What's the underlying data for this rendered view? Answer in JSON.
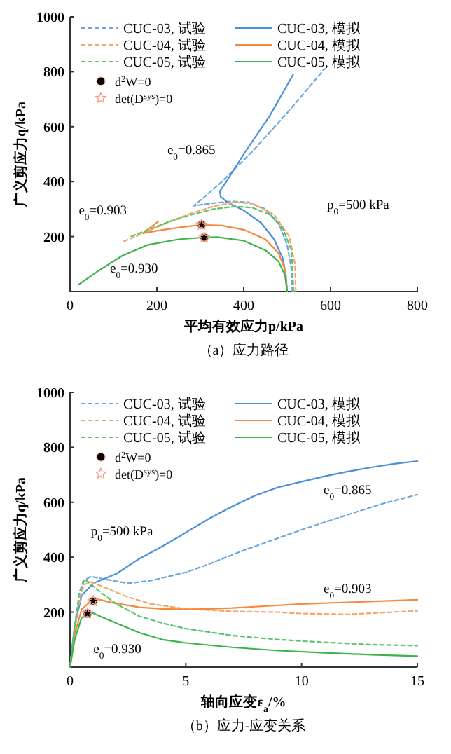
{
  "chart_data": [
    {
      "type": "line",
      "title": "（a）应力路径",
      "xlabel": "平均有效应力p/kPa",
      "ylabel": "广义剪应力q/kPa",
      "xlim": [
        0,
        800
      ],
      "xticks": [
        0,
        200,
        400,
        600,
        800
      ],
      "ylim": [
        0,
        1000
      ],
      "yticks": [
        200,
        400,
        600,
        800,
        1000
      ],
      "legend": "top left",
      "grid": false,
      "series": [
        {
          "name": "CUC-03, 试验",
          "color": "#6aa8e0",
          "line_style": "dashed",
          "x": [
            512,
            510,
            500,
            480,
            450,
            410,
            370,
            320,
            285,
            310,
            350,
            420,
            500,
            586
          ],
          "values": [
            0,
            80,
            170,
            250,
            300,
            325,
            328,
            320,
            312,
            345,
            400,
            510,
            650,
            810
          ]
        },
        {
          "name": "CUC-03, 模拟",
          "color": "#4a90d9",
          "line_style": "solid",
          "x": [
            500,
            497,
            490,
            470,
            440,
            400,
            365,
            347,
            345,
            360,
            400,
            460,
            514
          ],
          "values": [
            0,
            60,
            120,
            190,
            250,
            295,
            322,
            345,
            365,
            400,
            500,
            640,
            790
          ]
        },
        {
          "name": "CUC-04, 试验",
          "color": "#f7a66a",
          "line_style": "dashed",
          "x": [
            520,
            518,
            505,
            470,
            420,
            380,
            330,
            280,
            230,
            180,
            123
          ],
          "values": [
            0,
            100,
            200,
            280,
            320,
            325,
            310,
            285,
            255,
            220,
            182
          ]
        },
        {
          "name": "CUC-04, 模拟",
          "color": "#f58a3c",
          "line_style": "solid",
          "x": [
            500,
            495,
            480,
            450,
            400,
            350,
            303,
            260,
            215,
            168,
            203
          ],
          "values": [
            0,
            80,
            140,
            190,
            225,
            240,
            243,
            235,
            225,
            212,
            255
          ]
        },
        {
          "name": "CUC-05, 试验",
          "color": "#5cc46a",
          "line_style": "dashed",
          "x": [
            515,
            510,
            490,
            460,
            420,
            380,
            330,
            280,
            230,
            180,
            140
          ],
          "values": [
            0,
            150,
            230,
            280,
            305,
            310,
            300,
            280,
            255,
            225,
            200
          ]
        },
        {
          "name": "CUC-05, 模拟",
          "color": "#3cb44b",
          "line_style": "solid",
          "x": [
            500,
            495,
            480,
            450,
            400,
            340,
            309,
            250,
            180,
            120,
            60,
            20
          ],
          "values": [
            0,
            60,
            110,
            150,
            185,
            198,
            197,
            190,
            170,
            130,
            70,
            25
          ]
        },
        {
          "name": "d$^{2}$W=0",
          "type": "scatter",
          "marker": "circle",
          "color": "#000000",
          "x": [
            303,
            309
          ],
          "values": [
            243,
            197
          ]
        },
        {
          "name": "det(D$^{sys}$)=0",
          "type": "scatter",
          "marker": "star",
          "color": "#f0a08a",
          "x": [
            303,
            309
          ],
          "values": [
            243,
            197
          ]
        }
      ],
      "annotations": [
        "e$_{0}$=0.865",
        "e$_{0}$=0.903",
        "e$_{0}$=0.930",
        "p$_{0}$=500 kPa"
      ]
    },
    {
      "type": "line",
      "title": "（b）应力-应变关系",
      "xlabel": "轴向应变ε$_{a}$/%",
      "ylabel": "广义剪应力q/kPa",
      "xlim": [
        0,
        15
      ],
      "xticks": [
        0,
        5,
        10,
        15
      ],
      "ylim": [
        0,
        1000
      ],
      "yticks": [
        200,
        400,
        600,
        800,
        1000
      ],
      "legend": "top left",
      "grid": false,
      "series": [
        {
          "name": "CUC-03, 试验",
          "color": "#6aa8e0",
          "line_style": "dashed",
          "x": [
            0,
            0.3,
            0.6,
            0.9,
            1.5,
            2.5,
            3.5,
            5,
            6,
            7.5,
            9,
            10,
            12,
            13.5,
            15
          ],
          "values": [
            0,
            200,
            315,
            330,
            320,
            305,
            315,
            345,
            375,
            425,
            470,
            500,
            555,
            595,
            628
          ]
        },
        {
          "name": "CUC-03, 模拟",
          "color": "#4a90d9",
          "line_style": "solid",
          "x": [
            0,
            0.2,
            0.5,
            1,
            2,
            3,
            4,
            5,
            6,
            7,
            8,
            9,
            10,
            11,
            12,
            13,
            14,
            15
          ],
          "values": [
            0,
            150,
            260,
            305,
            340,
            395,
            440,
            490,
            540,
            585,
            625,
            655,
            675,
            695,
            712,
            727,
            740,
            750
          ]
        },
        {
          "name": "CUC-04, 试验",
          "color": "#f7a66a",
          "line_style": "dashed",
          "x": [
            0,
            0.3,
            0.6,
            0.9,
            1.5,
            2.5,
            3.5,
            5,
            7,
            9,
            10,
            12,
            15
          ],
          "values": [
            0,
            200,
            300,
            310,
            290,
            255,
            230,
            212,
            203,
            200,
            195,
            192,
            205
          ]
        },
        {
          "name": "CUC-04, 模拟",
          "color": "#f58a3c",
          "line_style": "solid",
          "x": [
            0,
            0.2,
            0.5,
            0.9,
            1.2,
            1.8,
            3,
            4,
            5,
            6,
            7,
            8,
            10,
            12,
            15
          ],
          "values": [
            0,
            120,
            210,
            240,
            247,
            235,
            218,
            212,
            210,
            212,
            215,
            220,
            230,
            236,
            245
          ]
        },
        {
          "name": "CUC-05, 试验",
          "color": "#5cc46a",
          "line_style": "dashed",
          "x": [
            0,
            0.2,
            0.4,
            0.6,
            0.8,
            1.2,
            2,
            3,
            4,
            5,
            7,
            9,
            11,
            13,
            15
          ],
          "values": [
            0,
            150,
            270,
            320,
            310,
            280,
            230,
            185,
            160,
            140,
            115,
            100,
            90,
            82,
            78
          ]
        },
        {
          "name": "CUC-05, 模拟",
          "color": "#3cb44b",
          "line_style": "solid",
          "x": [
            0,
            0.2,
            0.5,
            0.9,
            1.3,
            2,
            3,
            4,
            5,
            7,
            9,
            11,
            13,
            15
          ],
          "values": [
            0,
            100,
            180,
            200,
            185,
            160,
            125,
            100,
            88,
            72,
            60,
            52,
            45,
            40
          ]
        },
        {
          "name": "d$^{2}$W=0",
          "type": "scatter",
          "marker": "circle",
          "color": "#000000",
          "x": [
            1.0,
            0.75
          ],
          "values": [
            240,
            195
          ]
        },
        {
          "name": "det(D$^{sys}$)=0",
          "type": "scatter",
          "marker": "star",
          "color": "#f0a08a",
          "x": [
            1.0,
            0.75
          ],
          "values": [
            240,
            195
          ]
        }
      ],
      "annotations": [
        "e$_{0}$=0.865",
        "e$_{0}$=0.903",
        "e$_{0}$=0.930",
        "p$_{0}$=500 kPa"
      ]
    }
  ]
}
